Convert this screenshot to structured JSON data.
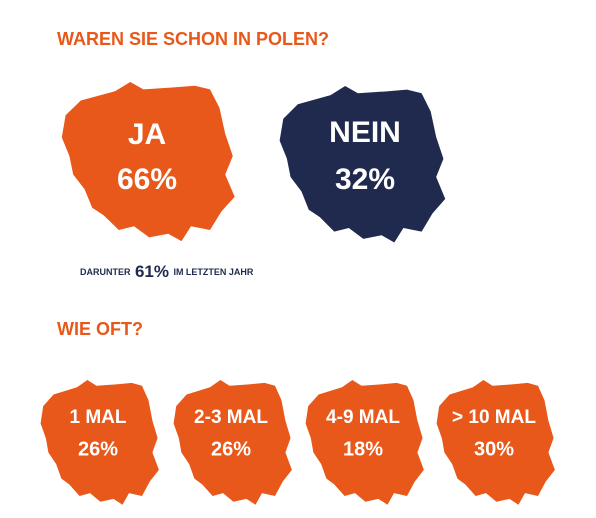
{
  "title": "WAREN SIE SCHON IN POLEN?",
  "answers": [
    {
      "label": "JA",
      "value": "66%"
    },
    {
      "label": "NEIN",
      "value": "32%"
    }
  ],
  "note": {
    "prefix": "DARUNTER",
    "value": "61%",
    "suffix": "IM LETZTEN JAHR"
  },
  "frequency_title": "WIE OFT?",
  "frequency": [
    {
      "label": "1 MAL",
      "value": "26%"
    },
    {
      "label": "2-3 MAL",
      "value": "26%"
    },
    {
      "label": "4-9 MAL",
      "value": "18%"
    },
    {
      "label": "> 10 MAL",
      "value": "30%"
    }
  ]
}
